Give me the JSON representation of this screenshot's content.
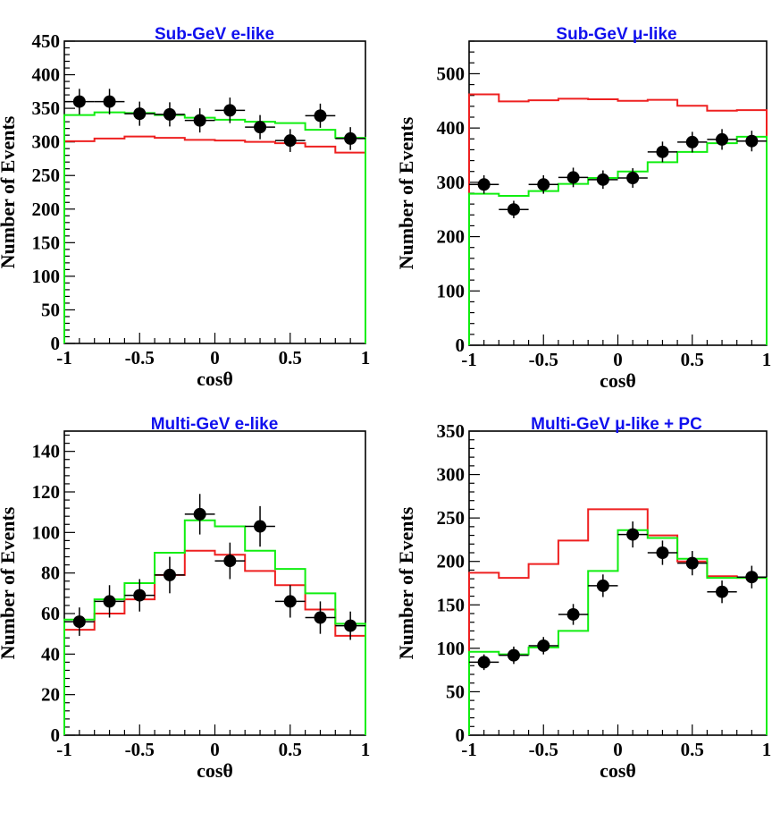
{
  "colors": {
    "data": "#000000",
    "no_oscillation": "#ee2020",
    "oscillation": "#10ee10",
    "title": "#1010ee"
  },
  "chart_data": [
    {
      "type": "histogram",
      "title": "Sub-GeV e-like",
      "xlabel": "cosθ",
      "ylabel": "Number of Events",
      "xlim": [
        -1,
        1
      ],
      "ylim": [
        0,
        450
      ],
      "x_ticks": [
        "-1",
        "-0.5",
        "0",
        "0.5",
        "1"
      ],
      "y_ticks": [
        0,
        50,
        100,
        150,
        200,
        250,
        300,
        350,
        400,
        450
      ],
      "bin_edges": [
        -1,
        -0.8,
        -0.6,
        -0.4,
        -0.2,
        0,
        0.2,
        0.4,
        0.6,
        0.8,
        1
      ],
      "series": [
        {
          "kind": "data",
          "color": "#000000",
          "x": [
            -0.9,
            -0.7,
            -0.5,
            -0.3,
            -0.1,
            0.1,
            0.3,
            0.5,
            0.7,
            0.9
          ],
          "y": [
            360,
            360,
            342,
            341,
            332,
            347,
            322,
            302,
            339,
            305
          ],
          "yerr": [
            19,
            19,
            18,
            18,
            18,
            19,
            18,
            17,
            18,
            17
          ]
        },
        {
          "kind": "step",
          "color": "#ee2020",
          "values": [
            301,
            305,
            308,
            306,
            303,
            302,
            300,
            298,
            293,
            284
          ]
        },
        {
          "kind": "step",
          "color": "#10ee10",
          "values": [
            340,
            344,
            343,
            340,
            336,
            333,
            330,
            328,
            318,
            306
          ]
        }
      ]
    },
    {
      "type": "histogram",
      "title": "Sub-GeV μ-like",
      "xlabel": "cosθ",
      "ylabel": "Number of Events",
      "xlim": [
        -1,
        1
      ],
      "ylim": [
        0,
        560
      ],
      "x_ticks": [
        "-1",
        "-0.5",
        "0",
        "0.5",
        "1"
      ],
      "y_ticks": [
        0,
        100,
        200,
        300,
        400,
        500
      ],
      "bin_edges": [
        -1,
        -0.8,
        -0.6,
        -0.4,
        -0.2,
        0,
        0.2,
        0.4,
        0.6,
        0.8,
        1
      ],
      "series": [
        {
          "kind": "data",
          "color": "#000000",
          "x": [
            -0.9,
            -0.7,
            -0.5,
            -0.3,
            -0.1,
            0.1,
            0.3,
            0.5,
            0.7,
            0.9
          ],
          "y": [
            296,
            250,
            296,
            309,
            305,
            308,
            356,
            374,
            379,
            376
          ],
          "yerr": [
            17,
            16,
            17,
            18,
            17,
            18,
            19,
            19,
            19,
            19
          ]
        },
        {
          "kind": "step",
          "color": "#ee2020",
          "values": [
            462,
            449,
            451,
            454,
            453,
            450,
            452,
            441,
            432,
            433
          ]
        },
        {
          "kind": "step",
          "color": "#10ee10",
          "values": [
            279,
            275,
            284,
            297,
            308,
            320,
            337,
            356,
            372,
            384
          ]
        }
      ]
    },
    {
      "type": "histogram",
      "title": "Multi-GeV e-like",
      "xlabel": "cosθ",
      "ylabel": "Number of Events",
      "xlim": [
        -1,
        1
      ],
      "ylim": [
        0,
        150
      ],
      "x_ticks": [
        "-1",
        "-0.5",
        "0",
        "0.5",
        "1"
      ],
      "y_ticks": [
        0,
        20,
        40,
        60,
        80,
        100,
        120,
        140
      ],
      "bin_edges": [
        -1,
        -0.8,
        -0.6,
        -0.4,
        -0.2,
        0,
        0.2,
        0.4,
        0.6,
        0.8,
        1
      ],
      "series": [
        {
          "kind": "data",
          "color": "#000000",
          "x": [
            -0.9,
            -0.7,
            -0.5,
            -0.3,
            -0.1,
            0.1,
            0.3,
            0.5,
            0.7,
            0.9
          ],
          "y": [
            56,
            66,
            69,
            79,
            109,
            86,
            103,
            66,
            58,
            54
          ],
          "yerr": [
            7,
            8,
            8,
            9,
            10,
            9,
            10,
            8,
            8,
            7
          ]
        },
        {
          "kind": "step",
          "color": "#ee2020",
          "values": [
            52,
            60,
            67,
            79,
            91,
            89,
            81,
            74,
            62,
            49
          ]
        },
        {
          "kind": "step",
          "color": "#10ee10",
          "values": [
            57,
            67,
            75,
            90,
            106,
            103,
            91,
            82,
            70,
            55
          ]
        }
      ]
    },
    {
      "type": "histogram",
      "title": "Multi-GeV μ-like + PC",
      "xlabel": "cosθ",
      "ylabel": "Number of Events",
      "xlim": [
        -1,
        1
      ],
      "ylim": [
        0,
        350
      ],
      "x_ticks": [
        "-1",
        "-0.5",
        "0",
        "0.5",
        "1"
      ],
      "y_ticks": [
        0,
        50,
        100,
        150,
        200,
        250,
        300,
        350
      ],
      "bin_edges": [
        -1,
        -0.8,
        -0.6,
        -0.4,
        -0.2,
        0,
        0.2,
        0.4,
        0.6,
        0.8,
        1
      ],
      "series": [
        {
          "kind": "data",
          "color": "#000000",
          "x": [
            -0.9,
            -0.7,
            -0.5,
            -0.3,
            -0.1,
            0.1,
            0.3,
            0.5,
            0.7,
            0.9
          ],
          "y": [
            84,
            92,
            103,
            139,
            172,
            231,
            210,
            198,
            165,
            182
          ],
          "yerr": [
            9,
            10,
            10,
            12,
            13,
            15,
            14,
            14,
            13,
            13
          ]
        },
        {
          "kind": "step",
          "color": "#ee2020",
          "values": [
            187,
            181,
            197,
            224,
            260,
            260,
            230,
            200,
            183,
            181
          ]
        },
        {
          "kind": "step",
          "color": "#10ee10",
          "values": [
            96,
            93,
            101,
            120,
            189,
            236,
            227,
            203,
            181,
            181
          ]
        }
      ]
    }
  ]
}
